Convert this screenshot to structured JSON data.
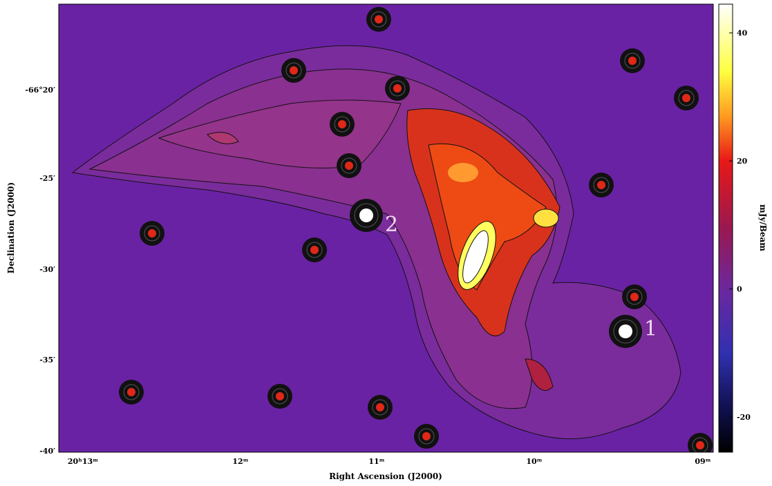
{
  "figure": {
    "x_axis_label": "Right Ascension (J2000)",
    "y_axis_label": "Declination (J2000)",
    "x_ticks": [
      "20ʰ13ᵐ",
      "12ᵐ",
      "11ᵐ",
      "10ᵐ",
      "09ᵐ"
    ],
    "y_ticks": [
      "-66°20′",
      "-25′",
      "-30′",
      "-35′",
      "-40′"
    ],
    "source_labels": [
      "1",
      "2"
    ],
    "colorbar": {
      "label": "mJy/Beam",
      "lim": [
        -25.5,
        44.5
      ],
      "ticks": [
        40,
        20,
        0,
        -20
      ]
    }
  }
}
